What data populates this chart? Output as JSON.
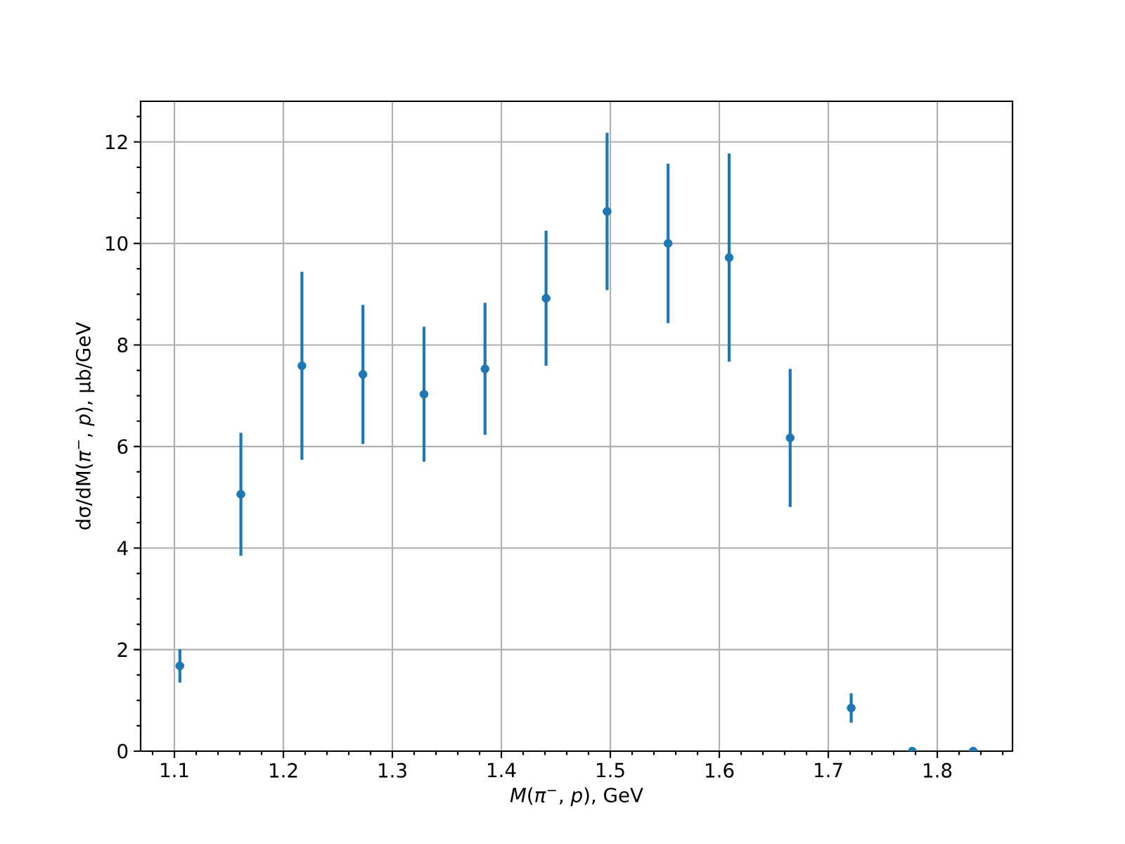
{
  "chart_data": {
    "type": "scatter",
    "xlabel": "*M*(*π*$^{−}$, *p*), GeV",
    "ylabel": "dσ/dM(*π*$^{−}$, *p*), μb/GeV",
    "x": [
      1.105,
      1.161,
      1.217,
      1.273,
      1.329,
      1.385,
      1.441,
      1.497,
      1.553,
      1.609,
      1.665,
      1.721,
      1.777,
      1.833
    ],
    "values": [
      1.68,
      5.06,
      7.59,
      7.42,
      7.03,
      7.53,
      8.92,
      10.63,
      10.0,
      9.72,
      6.17,
      0.85,
      0,
      0
    ],
    "errors": [
      0.33,
      1.21,
      1.85,
      1.37,
      1.33,
      1.3,
      1.33,
      1.55,
      1.57,
      2.05,
      1.36,
      0.29,
      null,
      null
    ],
    "color": "#1f77b4",
    "marker": "circle",
    "grid": true,
    "xlim": [
      1.069,
      1.869
    ],
    "ylim": [
      0,
      12.8
    ],
    "xticks": [
      {
        "value": 1.08,
        "label": null
      },
      1.1,
      {
        "value": 1.12,
        "label": null
      },
      {
        "value": 1.14,
        "label": null
      },
      {
        "value": 1.16,
        "label": null
      },
      {
        "value": 1.18,
        "label": null
      },
      1.2,
      {
        "value": 1.22,
        "label": null
      },
      {
        "value": 1.24,
        "label": null
      },
      {
        "value": 1.26,
        "label": null
      },
      {
        "value": 1.28,
        "label": null
      },
      1.3,
      {
        "value": 1.32,
        "label": null
      },
      {
        "value": 1.34,
        "label": null
      },
      {
        "value": 1.36,
        "label": null
      },
      {
        "value": 1.38,
        "label": null
      },
      1.4,
      {
        "value": 1.42,
        "label": null
      },
      {
        "value": 1.44,
        "label": null
      },
      {
        "value": 1.46,
        "label": null
      },
      {
        "value": 1.48,
        "label": null
      },
      1.5,
      {
        "value": 1.52,
        "label": null
      },
      {
        "value": 1.54,
        "label": null
      },
      {
        "value": 1.56,
        "label": null
      },
      {
        "value": 1.58,
        "label": null
      },
      1.6,
      {
        "value": 1.62,
        "label": null
      },
      {
        "value": 1.64,
        "label": null
      },
      {
        "value": 1.66,
        "label": null
      },
      {
        "value": 1.68,
        "label": null
      },
      1.7,
      {
        "value": 1.72,
        "label": null
      },
      {
        "value": 1.74,
        "label": null
      },
      {
        "value": 1.76,
        "label": null
      },
      {
        "value": 1.78,
        "label": null
      },
      1.8,
      {
        "value": 1.82,
        "label": null
      },
      {
        "value": 1.84,
        "label": null
      },
      {
        "value": 1.86,
        "label": null
      }
    ],
    "yticks": [
      0,
      {
        "value": 0.5,
        "label": null
      },
      {
        "value": 1,
        "label": null
      },
      {
        "value": 1.5,
        "label": null
      },
      2,
      {
        "value": 2.5,
        "label": null
      },
      {
        "value": 3,
        "label": null
      },
      {
        "value": 3.5,
        "label": null
      },
      4,
      {
        "value": 4.5,
        "label": null
      },
      {
        "value": 5,
        "label": null
      },
      {
        "value": 5.5,
        "label": null
      },
      6,
      {
        "value": 6.5,
        "label": null
      },
      {
        "value": 7,
        "label": null
      },
      {
        "value": 7.5,
        "label": null
      },
      8,
      {
        "value": 8.5,
        "label": null
      },
      {
        "value": 9,
        "label": null
      },
      {
        "value": 9.5,
        "label": null
      },
      10,
      {
        "value": 10.5,
        "label": null
      },
      {
        "value": 11,
        "label": null
      },
      {
        "value": 11.5,
        "label": null
      },
      12,
      {
        "value": 12.5,
        "label": null
      }
    ]
  }
}
